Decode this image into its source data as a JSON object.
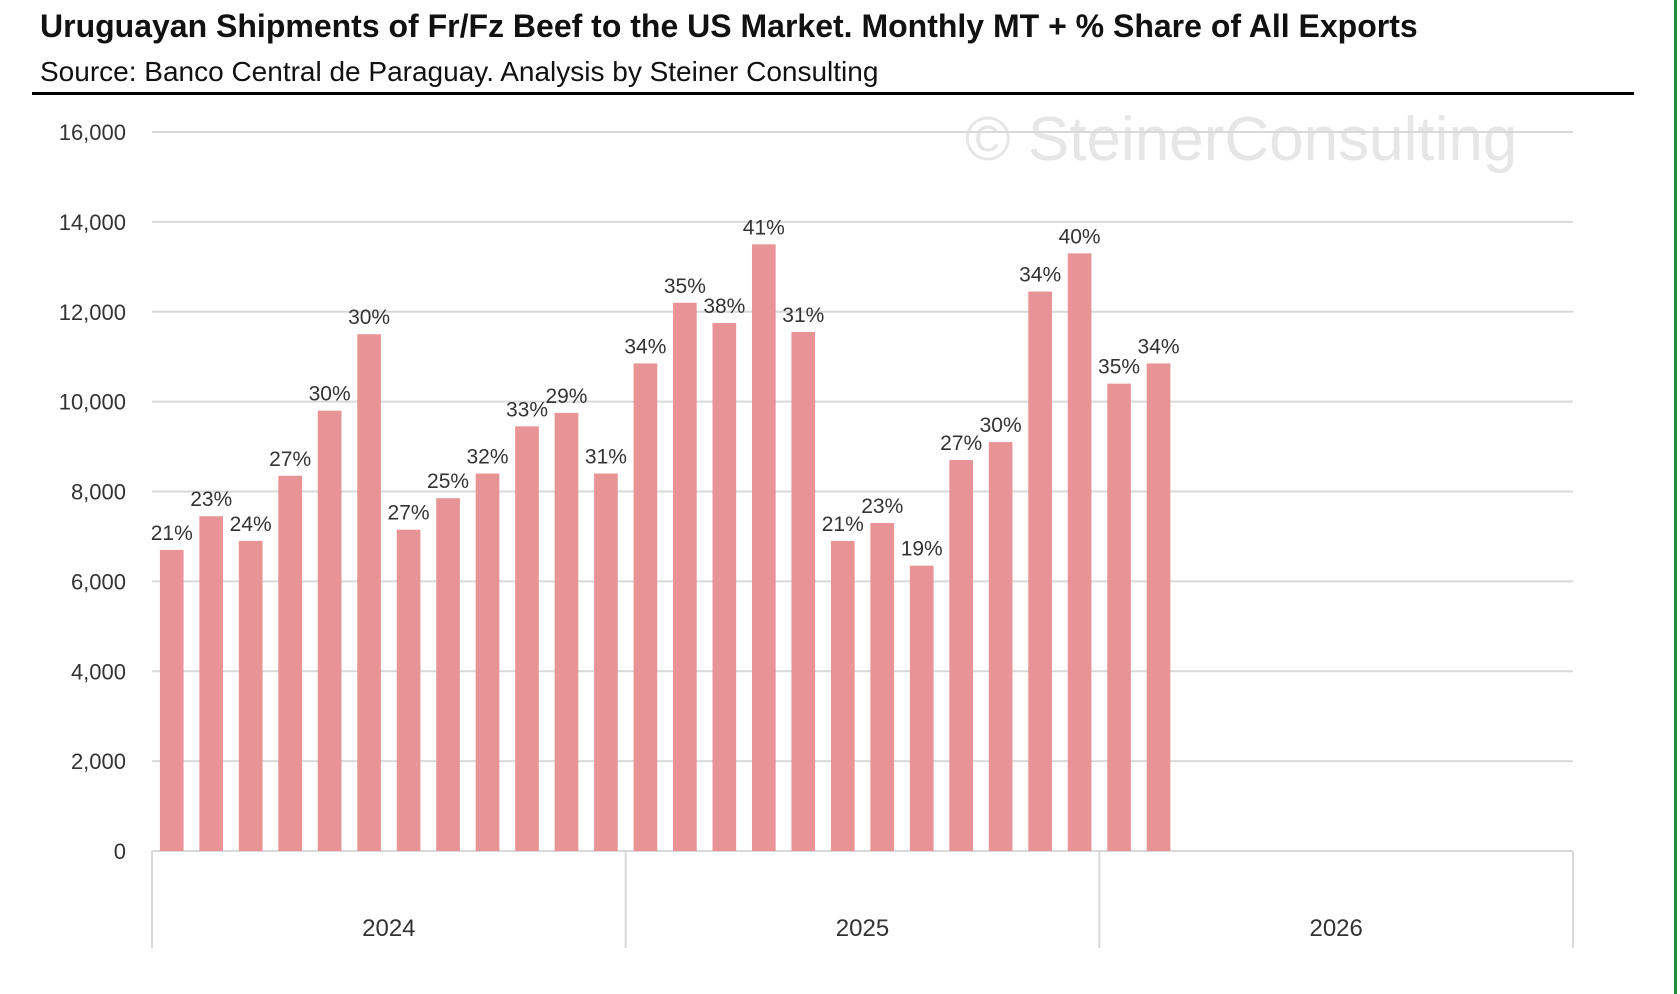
{
  "header": {
    "title": "Uruguayan Shipments of Fr/Fz Beef to the US Market.  Monthly MT + % Share of All Exports",
    "subtitle": "Source: Banco Central de Paraguay.  Analysis by Steiner Consulting"
  },
  "watermark": "© SteinerConsulting",
  "colors": {
    "bar": "#e89496",
    "grid": "#d9d9d9",
    "accent_border": "#1f8a3c"
  },
  "chart_data": {
    "type": "bar",
    "title": "Uruguayan Shipments of Fr/Fz Beef to the US Market.  Monthly MT + % Share of All Exports",
    "ylim": [
      0,
      16000
    ],
    "yticks": [
      "0",
      "2,000",
      "4,000",
      "6,000",
      "8,000",
      "10,000",
      "12,000",
      "14,000",
      "16,000"
    ],
    "grid": true,
    "groups": [
      {
        "label": "2024",
        "months": 12
      },
      {
        "label": "2025",
        "months": 12
      },
      {
        "label": "2026",
        "months": 12
      }
    ],
    "values": [
      6700,
      7450,
      6900,
      8350,
      9800,
      11500,
      7150,
      7850,
      8400,
      9450,
      9750,
      8400,
      10850,
      12200,
      11750,
      13500,
      11550,
      6900,
      7300,
      6350,
      8700,
      9100,
      12450,
      13300,
      10400,
      10850
    ],
    "labels": [
      "21%",
      "23%",
      "24%",
      "27%",
      "30%",
      "30%",
      "27%",
      "25%",
      "32%",
      "33%",
      "29%",
      "31%",
      "34%",
      "35%",
      "38%",
      "41%",
      "31%",
      "21%",
      "23%",
      "19%",
      "27%",
      "30%",
      "34%",
      "40%",
      "35%",
      "34%"
    ]
  }
}
